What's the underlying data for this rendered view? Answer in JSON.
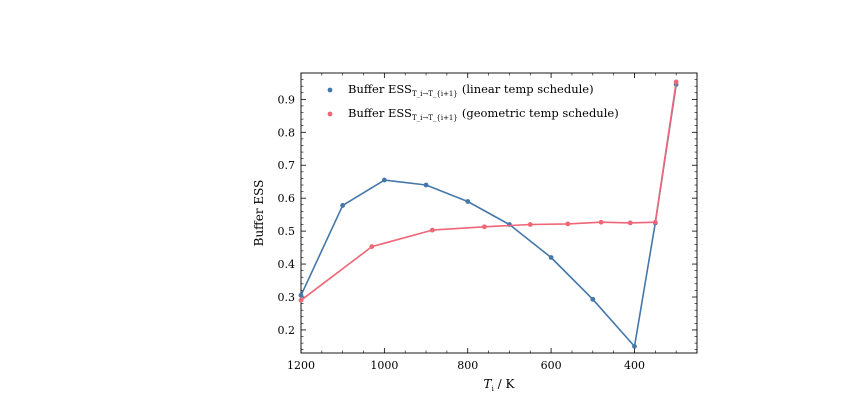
{
  "chart_data": {
    "type": "line",
    "xlabel": "T_i / K",
    "ylabel": "Buffer ESS",
    "x_axis_reversed": true,
    "xlim": [
      1200,
      250
    ],
    "ylim": [
      0.13,
      0.98
    ],
    "xticks": [
      1200,
      1000,
      800,
      600,
      400
    ],
    "yticks": [
      0.2,
      0.3,
      0.4,
      0.5,
      0.6,
      0.7,
      0.8,
      0.9
    ],
    "xtick_labels": [
      "1200",
      "1000",
      "800",
      "600",
      "400"
    ],
    "ytick_labels": [
      "0.2",
      "0.3",
      "0.4",
      "0.5",
      "0.6",
      "0.7",
      "0.8",
      "0.9"
    ],
    "grid": false,
    "legend_position": "upper-left",
    "series": [
      {
        "name": "Buffer ESS_{T_i→T_{i+1}} (linear temp schedule)",
        "legend_prefix": "Buffer ESS",
        "legend_sub": "T_i→T_{i+1}",
        "legend_suffix": "(linear temp schedule)",
        "color": "#4477aa",
        "x": [
          1200,
          1100,
          1000,
          900,
          800,
          700,
          600,
          500,
          400,
          350,
          300
        ],
        "y": [
          0.305,
          0.578,
          0.655,
          0.64,
          0.59,
          0.52,
          0.42,
          0.293,
          0.15,
          0.525,
          0.945
        ]
      },
      {
        "name": "Buffer ESS_{T_i→T_{i+1}} (geometric temp schedule)",
        "legend_prefix": "Buffer ESS",
        "legend_sub": "T_i→T_{i+1}",
        "legend_suffix": "(geometric temp schedule)",
        "color": "#ee6677",
        "x": [
          1200,
          1030,
          885,
          760,
          650,
          560,
          480,
          410,
          350,
          300
        ],
        "y": [
          0.29,
          0.453,
          0.503,
          0.513,
          0.52,
          0.522,
          0.527,
          0.525,
          0.527,
          0.953
        ]
      }
    ]
  }
}
